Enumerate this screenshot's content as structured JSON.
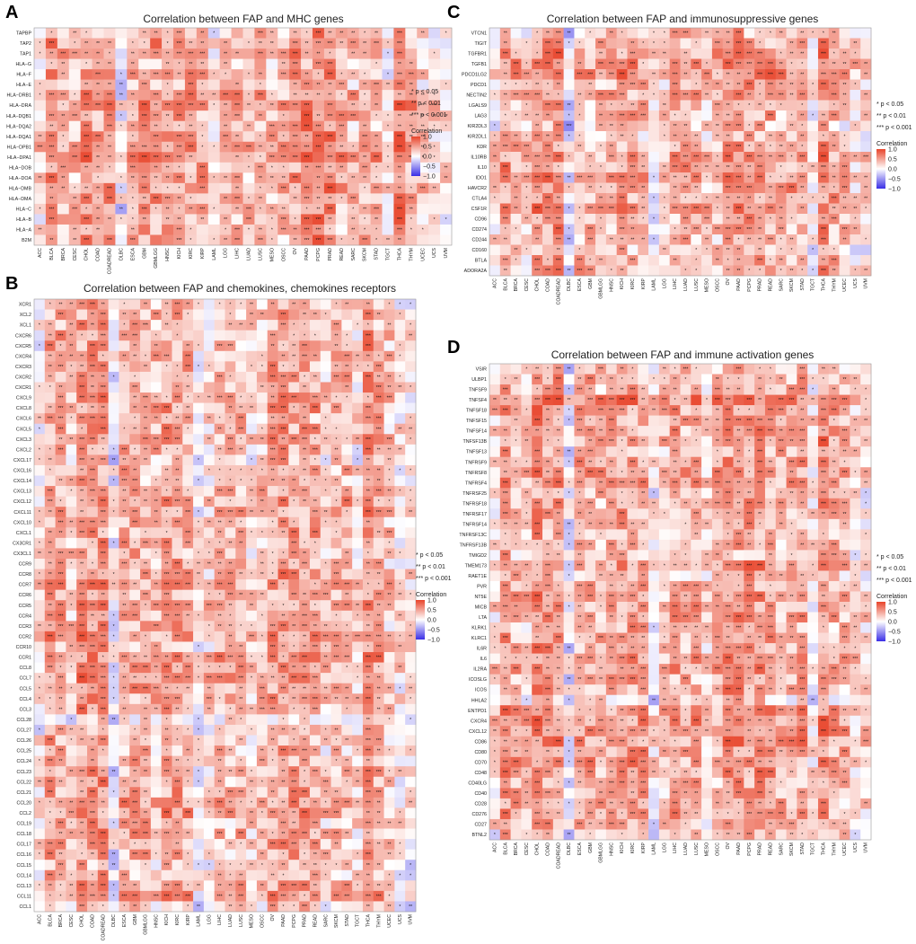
{
  "colors": {
    "high": "#e8442a",
    "mid": "#ffffff",
    "low": "#3a2ee6",
    "highlight_label": "#e69a16",
    "frame": "#9a9a9a"
  },
  "legend": {
    "sig1": "*    p < 0.05",
    "sig2": "**   p < 0.01",
    "sig3": "***  p < 0.001",
    "title": "Correlation",
    "ticks": [
      "1.0",
      "0.5",
      "0.0",
      "−0.5",
      "−1.0"
    ]
  },
  "chart_data": [
    {
      "id": "A",
      "type": "heatmap",
      "panel_label": "A",
      "title": "Correlation between FAP and MHC genes",
      "columns": [
        "ACC",
        "BLCA",
        "BRCA",
        "CESC",
        "CHOL",
        "COAD",
        "COADREAD",
        "DLBC",
        "ESCA",
        "GBM",
        "GBMLGG",
        "HNSC",
        "KICH",
        "KIRC",
        "KIRP",
        "LAML",
        "LGG",
        "LIHC",
        "LUAD",
        "LUSC",
        "MESO",
        "OSCC",
        "OV",
        "PAAD",
        "PCPG",
        "PRAD",
        "READ",
        "SARC",
        "SKCM",
        "STAD",
        "TGCT",
        "THCA",
        "THYM",
        "UCEC",
        "UCS",
        "UVM"
      ],
      "rows": [
        "TAPBP",
        "TAP2",
        "TAP1",
        "HLA−G",
        "HLA−F",
        "HLA−E",
        "HLA−DRB1",
        "HLA−DRA",
        "HLA−DQB1",
        "HLA−DQA2",
        "HLA−DQA1",
        "HLA−DPB1",
        "HLA−DPA1",
        "HLA−DOB",
        "HLA−DOA",
        "HLA−DMB",
        "HLA−DMA",
        "HLA−C",
        "HLA−B",
        "HLA−A",
        "B2M"
      ],
      "highlight_rows": [],
      "scale": [
        -1.0,
        1.0
      ],
      "seed": 11,
      "col_bias": [
        0.1,
        0.45,
        0.35,
        0.2,
        0.5,
        0.35,
        0.35,
        -0.15,
        0.3,
        0.45,
        0.45,
        0.35,
        0.4,
        0.4,
        0.35,
        0.05,
        0.3,
        0.35,
        0.25,
        0.3,
        0.2,
        0.3,
        0.45,
        0.55,
        0.6,
        0.5,
        0.3,
        0.25,
        0.3,
        0.3,
        0.05,
        0.6,
        0.35,
        0.2,
        0.1,
        0.05
      ],
      "row_bias": [
        0.0,
        0.05,
        0.05,
        -0.1,
        0.0,
        -0.05,
        0.1,
        0.15,
        0.05,
        0.0,
        0.1,
        0.15,
        0.2,
        0.05,
        0.05,
        0.1,
        0.1,
        0.0,
        0.0,
        0.0,
        0.0
      ]
    },
    {
      "id": "B",
      "type": "heatmap",
      "panel_label": "B",
      "title": "Correlation between FAP and chemokines, chemokines receptors",
      "columns": [
        "ACC",
        "BLCA",
        "BRCA",
        "CESC",
        "CHOL",
        "COAD",
        "COADREAD",
        "DLBC",
        "ESCA",
        "GBM",
        "GBMLGG",
        "HNSC",
        "KICH",
        "KIRC",
        "KIRP",
        "LAML",
        "LGG",
        "LIHC",
        "LUAD",
        "LUSC",
        "MESO",
        "OSCC",
        "OV",
        "PAAD",
        "PCPG",
        "PRAD",
        "READ",
        "SARC",
        "SKCM",
        "STAD",
        "TGCT",
        "THCA",
        "THYM",
        "UCEC",
        "UCS",
        "UVM"
      ],
      "rows": [
        "XCR1",
        "XCL2",
        "XCL1",
        "CXCR6",
        "CXCR5",
        "CXCR4",
        "CXCR3",
        "CXCR2",
        "CXCR1",
        "CXCL9",
        "CXCL8",
        "CXCL6",
        "CXCL5",
        "CXCL3",
        "CXCL2",
        "CXCL17",
        "CXCL16",
        "CXCL14",
        "CXCL13",
        "CXCL12",
        "CXCL11",
        "CXCL10",
        "CXCL1",
        "CX3CR1",
        "CX3CL1",
        "CCR9",
        "CCR8",
        "CCR7",
        "CCR6",
        "CCR5",
        "CCR4",
        "CCR3",
        "CCR2",
        "CCR10",
        "CCR1",
        "CCL8",
        "CCL7",
        "CCL5",
        "CCL4",
        "CCL3",
        "CCL28",
        "CCL27",
        "CCL26",
        "CCL25",
        "CCL24",
        "CCL23",
        "CCL22",
        "CCL21",
        "CCL20",
        "CCL2",
        "CCL19",
        "CCL18",
        "CCL17",
        "CCL16",
        "CCL15",
        "CCL14",
        "CCL13",
        "CCL11",
        "CCL1"
      ],
      "highlight_rows": [
        "XCR1",
        "CXCR6",
        "CXCR5",
        "CXCR4",
        "CXCR3",
        "CXCR2",
        "CXCR1",
        "CX3CR1",
        "CCR9",
        "CCR8",
        "CCR7",
        "CCR6",
        "CCR5",
        "CCR4",
        "CCR3",
        "CCR2",
        "CCR10",
        "CCR1"
      ],
      "scale": [
        -1.0,
        1.0
      ],
      "seed": 23,
      "col_bias": [
        0.05,
        0.4,
        0.35,
        0.2,
        0.45,
        0.45,
        0.45,
        -0.1,
        0.35,
        0.35,
        0.35,
        0.3,
        0.4,
        0.4,
        0.35,
        0.0,
        0.15,
        0.3,
        0.25,
        0.3,
        0.15,
        0.25,
        0.4,
        0.45,
        0.4,
        0.4,
        0.35,
        0.2,
        0.3,
        0.3,
        0.1,
        0.5,
        0.35,
        0.2,
        0.05,
        0.05
      ],
      "row_bias": [
        0.0,
        0.0,
        0.0,
        0.05,
        0.0,
        0.05,
        0.05,
        0.0,
        0.0,
        0.05,
        0.1,
        0.0,
        0.05,
        0.05,
        0.0,
        -0.1,
        0.0,
        -0.05,
        0.05,
        0.15,
        0.05,
        0.05,
        0.05,
        0.0,
        0.0,
        0.0,
        0.05,
        0.1,
        0.0,
        0.1,
        0.05,
        0.0,
        0.1,
        0.0,
        0.15,
        0.1,
        0.15,
        0.05,
        0.05,
        0.1,
        -0.2,
        -0.05,
        0.0,
        -0.05,
        0.0,
        0.0,
        0.05,
        0.05,
        0.1,
        0.1,
        0.0,
        0.05,
        0.0,
        0.0,
        -0.15,
        -0.05,
        0.05,
        0.1,
        -0.1
      ]
    },
    {
      "id": "C",
      "type": "heatmap",
      "panel_label": "C",
      "title": "Correlation between FAP and immunosuppressive genes",
      "columns": [
        "ACC",
        "BLCA",
        "BRCA",
        "CESC",
        "CHOL",
        "COAD",
        "COADREAD",
        "DLBC",
        "ESCA",
        "GBM",
        "GBMLGG",
        "HNSC",
        "KICH",
        "KIRC",
        "KIRP",
        "LAML",
        "LGG",
        "LIHC",
        "LUAD",
        "LUSC",
        "MESO",
        "OSCC",
        "OV",
        "PAAD",
        "PCPG",
        "PRAD",
        "READ",
        "SARC",
        "SKCM",
        "STAD",
        "TGCT",
        "THCA",
        "THYM",
        "UCEC",
        "UCS",
        "UVM"
      ],
      "rows": [
        "VTCN1",
        "TIGIT",
        "TGFBR1",
        "TGFB1",
        "PDCD1LG2",
        "PDCD1",
        "NECTIN2",
        "LGALS9",
        "LAG3",
        "KIR2DL3",
        "KIR2DL1",
        "KDR",
        "IL10RB",
        "IL10",
        "IDO1",
        "HAVCR2",
        "CTLA4",
        "CSF1R",
        "CD96",
        "CD274",
        "CD244",
        "CD160",
        "BTLA",
        "ADORA2A"
      ],
      "highlight_rows": [],
      "scale": [
        -1.0,
        1.0
      ],
      "seed": 37,
      "col_bias": [
        0.15,
        0.45,
        0.35,
        0.2,
        0.5,
        0.5,
        0.5,
        -0.15,
        0.35,
        0.3,
        0.3,
        0.35,
        0.4,
        0.35,
        0.35,
        0.0,
        0.2,
        0.35,
        0.35,
        0.35,
        0.2,
        0.3,
        0.45,
        0.5,
        0.45,
        0.45,
        0.4,
        0.3,
        0.35,
        0.35,
        0.05,
        0.5,
        0.35,
        0.25,
        0.1,
        0.1
      ],
      "row_bias": [
        -0.1,
        0.0,
        0.1,
        0.15,
        0.2,
        0.0,
        0.05,
        0.0,
        0.0,
        -0.15,
        -0.15,
        0.0,
        0.1,
        0.05,
        0.05,
        0.1,
        0.05,
        0.1,
        0.0,
        0.0,
        -0.05,
        -0.1,
        0.0,
        0.0
      ]
    },
    {
      "id": "D",
      "type": "heatmap",
      "panel_label": "D",
      "title": "Correlation between FAP and immune activation genes",
      "columns": [
        "ACC",
        "BLCA",
        "BRCA",
        "CESC",
        "CHOL",
        "COAD",
        "COADREAD",
        "DLBC",
        "ESCA",
        "GBM",
        "GBMLGG",
        "HNSC",
        "KICH",
        "KIRC",
        "KIRP",
        "LAML",
        "LGG",
        "LIHC",
        "LUAD",
        "LUSC",
        "MESO",
        "OSCC",
        "OV",
        "PAAD",
        "PCPG",
        "PRAD",
        "READ",
        "SARC",
        "SKCM",
        "STAD",
        "TGCT",
        "THCA",
        "THYM",
        "UCEC",
        "UCS",
        "UVM"
      ],
      "rows": [
        "VSIR",
        "ULBP1",
        "TNFSF9",
        "TNFSF4",
        "TNFSF18",
        "TNFSF15",
        "TNFSF14",
        "TNFSF13B",
        "TNFSF13",
        "TNFRSF9",
        "TNFRSF8",
        "TNFRSF4",
        "TNFRSF25",
        "TNFRSF18",
        "TNFRSF17",
        "TNFRSF14",
        "TNFRSF13C",
        "TNFRSF13B",
        "TMIGD2",
        "TMEM173",
        "RAET1E",
        "PVR",
        "NT5E",
        "MICB",
        "LTA",
        "KLRK1",
        "KLRC1",
        "IL6R",
        "IL6",
        "IL2RA",
        "ICOSLG",
        "ICOS",
        "HHLA2",
        "ENTPD1",
        "CXCR4",
        "CXCL12",
        "CD86",
        "CD80",
        "CD70",
        "CD48",
        "CD40LG",
        "CD40",
        "CD28",
        "CD276",
        "CD27",
        "BTNL2"
      ],
      "highlight_rows": [],
      "scale": [
        -1.0,
        1.0
      ],
      "seed": 53,
      "col_bias": [
        0.1,
        0.45,
        0.35,
        0.2,
        0.5,
        0.45,
        0.45,
        -0.15,
        0.35,
        0.35,
        0.3,
        0.35,
        0.4,
        0.4,
        0.35,
        0.0,
        0.2,
        0.35,
        0.3,
        0.35,
        0.15,
        0.3,
        0.45,
        0.45,
        0.45,
        0.45,
        0.4,
        0.3,
        0.3,
        0.35,
        0.05,
        0.5,
        0.3,
        0.25,
        0.1,
        0.1
      ],
      "row_bias": [
        0.0,
        0.0,
        0.0,
        0.25,
        0.1,
        0.05,
        0.05,
        0.1,
        0.0,
        0.1,
        0.1,
        0.1,
        -0.05,
        0.0,
        0.0,
        0.0,
        -0.05,
        0.0,
        -0.1,
        0.1,
        -0.05,
        0.0,
        0.1,
        0.05,
        0.05,
        0.0,
        0.0,
        0.0,
        0.1,
        0.1,
        0.0,
        0.05,
        -0.15,
        0.15,
        0.15,
        0.15,
        0.15,
        0.1,
        0.1,
        0.05,
        0.0,
        0.05,
        0.05,
        0.1,
        0.0,
        -0.1
      ]
    }
  ]
}
